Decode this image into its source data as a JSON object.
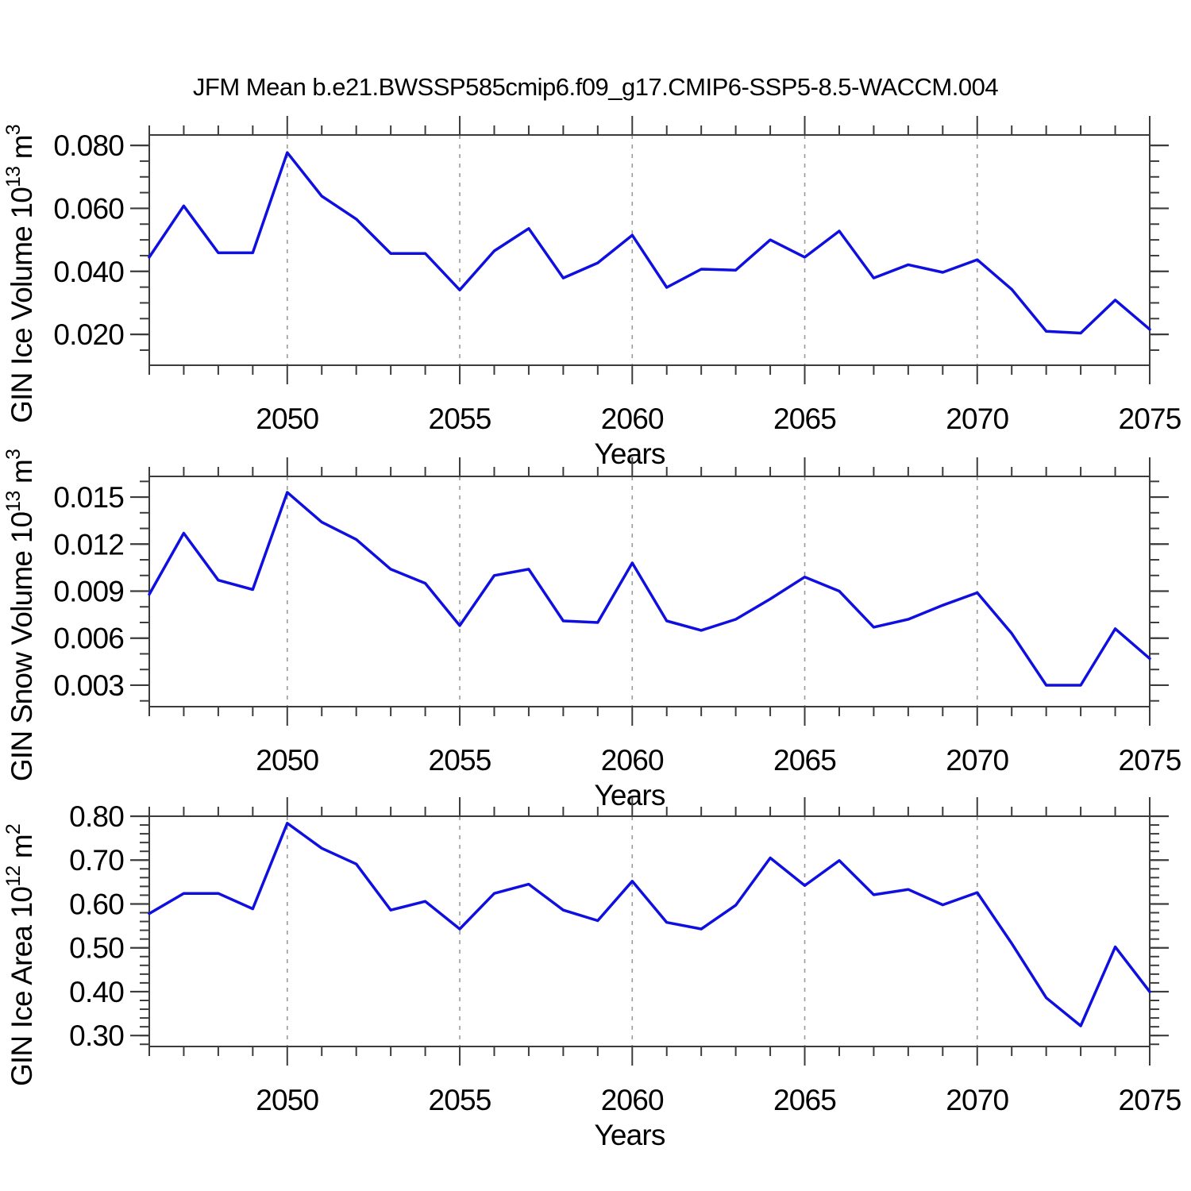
{
  "title": "JFM Mean b.e21.BWSSP585cmip6.f09_g17.CMIP6-SSP5-8.5-WACCM.004",
  "colors": {
    "line": "#0f0fe0",
    "grid": "#9a9a9a",
    "axis": "#3c3c3c",
    "text": "#000000",
    "background": "#ffffff"
  },
  "chart_data": {
    "type": "line",
    "xlabel": "Years",
    "xlim": [
      2046,
      2075
    ],
    "x": [
      2046,
      2047,
      2048,
      2049,
      2050,
      2051,
      2052,
      2053,
      2054,
      2055,
      2056,
      2057,
      2058,
      2059,
      2060,
      2061,
      2062,
      2063,
      2064,
      2065,
      2066,
      2067,
      2068,
      2069,
      2070,
      2071,
      2072,
      2073,
      2074,
      2075
    ],
    "x_major_ticks": [
      2050,
      2055,
      2060,
      2065,
      2070,
      2075
    ],
    "x_major_labels": [
      "2050",
      "2055",
      "2060",
      "2065",
      "2070",
      "2075"
    ],
    "x_minor_step": 1,
    "x_grid_years": [
      2050,
      2055,
      2060,
      2065,
      2070
    ],
    "grid_on": true,
    "legend": "none",
    "panels": [
      {
        "name": "GIN Ice Volume",
        "unit": "10^13 m^3",
        "ylabel_parts": [
          [
            "GIN Ice Volume 10",
            0
          ],
          [
            "13",
            1
          ],
          [
            " m",
            0
          ],
          [
            "3",
            1
          ]
        ],
        "ylim": [
          0.0102,
          0.0833
        ],
        "y_major": [
          0.02,
          0.04,
          0.06,
          0.08
        ],
        "y_major_labels": [
          "0.020",
          "0.040",
          "0.060",
          "0.080"
        ],
        "y_minor_step": 0.005,
        "values": [
          0.0445,
          0.0608,
          0.0459,
          0.0459,
          0.0777,
          0.0639,
          0.0566,
          0.0457,
          0.0457,
          0.0341,
          0.0465,
          0.0536,
          0.0379,
          0.0427,
          0.0515,
          0.0349,
          0.0407,
          0.0404,
          0.05,
          0.0445,
          0.0528,
          0.0379,
          0.0421,
          0.0397,
          0.0437,
          0.0343,
          0.021,
          0.0204,
          0.0309,
          0.0216
        ]
      },
      {
        "name": "GIN Snow Volume",
        "unit": "10^13 m^3",
        "ylabel_parts": [
          [
            "GIN Snow Volume 10",
            0
          ],
          [
            "13",
            1
          ],
          [
            " m",
            0
          ],
          [
            "3",
            1
          ]
        ],
        "ylim": [
          0.00163,
          0.01632
        ],
        "y_major": [
          0.003,
          0.006,
          0.009,
          0.012,
          0.015
        ],
        "y_major_labels": [
          "0.003",
          "0.006",
          "0.009",
          "0.012",
          "0.015"
        ],
        "y_minor_step": 0.001,
        "values": [
          0.0088,
          0.0127,
          0.0097,
          0.0091,
          0.0153,
          0.0134,
          0.0123,
          0.0104,
          0.0095,
          0.0068,
          0.01,
          0.0104,
          0.0071,
          0.007,
          0.0108,
          0.0071,
          0.0065,
          0.0072,
          0.0085,
          0.0099,
          0.009,
          0.0067,
          0.0072,
          0.0081,
          0.0089,
          0.0063,
          0.003,
          0.003,
          0.0066,
          0.0047
        ]
      },
      {
        "name": "GIN Ice Area",
        "unit": "10^12 m^2",
        "ylabel_parts": [
          [
            "GIN Ice Area 10",
            0
          ],
          [
            "12",
            1
          ],
          [
            " m",
            0
          ],
          [
            "2",
            1
          ]
        ],
        "ylim": [
          0.275,
          0.8
        ],
        "y_major": [
          0.3,
          0.4,
          0.5,
          0.6,
          0.7,
          0.8
        ],
        "y_major_labels": [
          "0.30",
          "0.40",
          "0.50",
          "0.60",
          "0.70",
          "0.80"
        ],
        "y_minor_step": 0.02,
        "values": [
          0.578,
          0.624,
          0.624,
          0.589,
          0.784,
          0.727,
          0.691,
          0.586,
          0.606,
          0.543,
          0.624,
          0.645,
          0.586,
          0.562,
          0.652,
          0.558,
          0.543,
          0.597,
          0.705,
          0.642,
          0.699,
          0.621,
          0.633,
          0.598,
          0.626,
          0.51,
          0.386,
          0.322,
          0.502,
          0.4
        ]
      }
    ]
  }
}
